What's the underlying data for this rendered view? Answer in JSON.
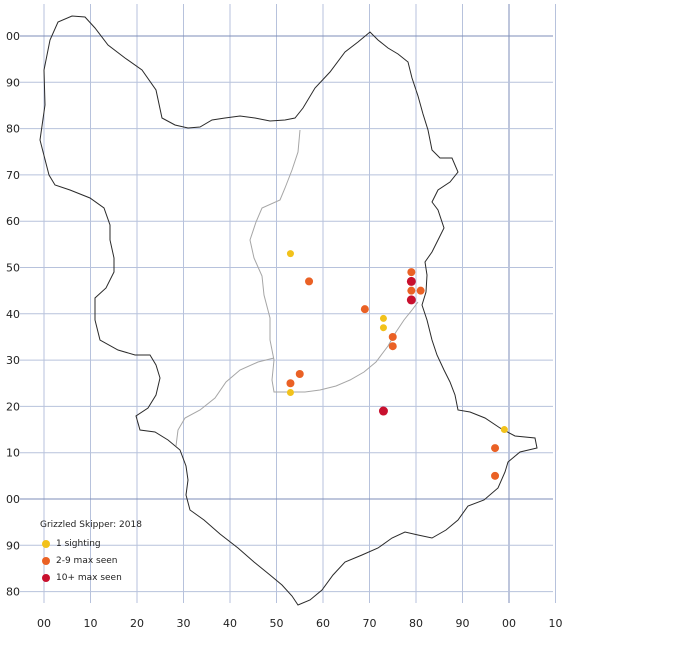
{
  "map": {
    "x_labels": [
      "00",
      "10",
      "20",
      "30",
      "40",
      "50",
      "60",
      "70",
      "80",
      "90",
      "00",
      "10"
    ],
    "y_labels": [
      "00",
      "90",
      "80",
      "70",
      "60",
      "50",
      "40",
      "30",
      "20",
      "10",
      "00",
      "90",
      "80"
    ],
    "colors": {
      "grid": "#b7c2dc",
      "grid_major": "#7d8db8",
      "boundary": "#2a2a2a",
      "inner_boundary": "#a6a6a6",
      "one": "#f2c21b",
      "few": "#ea6125",
      "many": "#c8102e"
    }
  },
  "legend": {
    "title": "Grizzled Skipper:  2018",
    "items": [
      {
        "label": "1 sighting",
        "category": "one"
      },
      {
        "label": "2-9 max seen",
        "category": "few"
      },
      {
        "label": "10+ max seen",
        "category": "many"
      }
    ]
  },
  "sightings": [
    {
      "e": 53,
      "n": 53,
      "category": "one"
    },
    {
      "e": 57,
      "n": 47,
      "category": "few"
    },
    {
      "e": 69,
      "n": 41,
      "category": "few"
    },
    {
      "e": 73,
      "n": 39,
      "category": "one"
    },
    {
      "e": 73,
      "n": 37,
      "category": "one"
    },
    {
      "e": 75,
      "n": 35,
      "category": "few"
    },
    {
      "e": 75,
      "n": 33,
      "category": "few"
    },
    {
      "e": 79,
      "n": 49,
      "category": "few"
    },
    {
      "e": 79,
      "n": 47,
      "category": "many"
    },
    {
      "e": 79,
      "n": 45,
      "category": "few"
    },
    {
      "e": 81,
      "n": 45,
      "category": "few"
    },
    {
      "e": 79,
      "n": 43,
      "category": "many"
    },
    {
      "e": 55,
      "n": 27,
      "category": "few"
    },
    {
      "e": 53,
      "n": 25,
      "category": "few"
    },
    {
      "e": 53,
      "n": 23,
      "category": "one"
    },
    {
      "e": 73,
      "n": 19,
      "category": "many"
    },
    {
      "e": 99,
      "n": 15,
      "category": "one"
    },
    {
      "e": 97,
      "n": 11,
      "category": "few"
    },
    {
      "e": 97,
      "n": 5,
      "category": "few"
    }
  ]
}
